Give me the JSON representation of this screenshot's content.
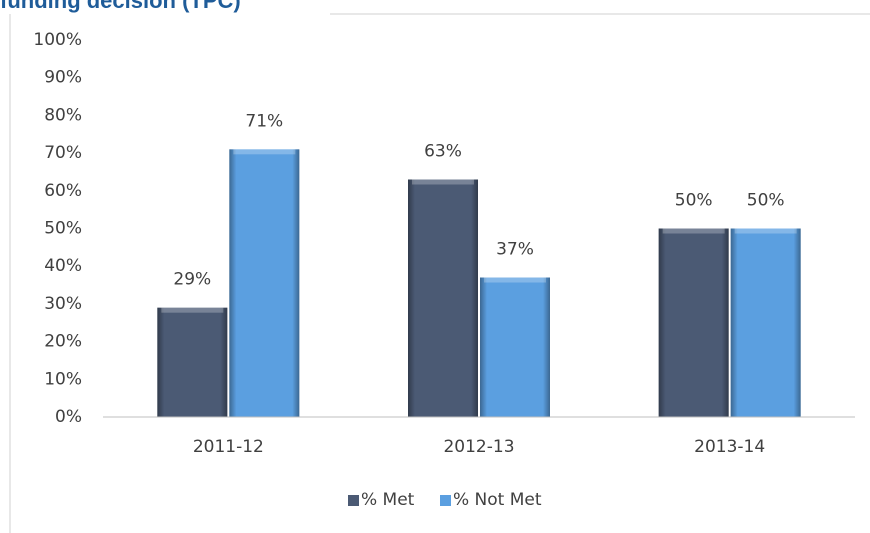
{
  "chart_data": {
    "type": "bar",
    "title": "funding decision (TPC)",
    "categories": [
      "2011-12",
      "2012-13",
      "2013-14"
    ],
    "series": [
      {
        "name": "% Met",
        "color": "#4b5a74",
        "values": [
          29,
          63,
          50
        ],
        "value_labels": [
          "29%",
          "63%",
          "50%"
        ]
      },
      {
        "name": "% Not Met",
        "color": "#5b9fe0",
        "values": [
          71,
          37,
          50
        ],
        "value_labels": [
          "71%",
          "37%",
          "50%"
        ]
      }
    ],
    "ylim": [
      0,
      100
    ],
    "yticks": [
      {
        "value": 0,
        "label": "0%"
      },
      {
        "value": 10,
        "label": "10%"
      },
      {
        "value": 20,
        "label": "20%"
      },
      {
        "value": 30,
        "label": "30%"
      },
      {
        "value": 40,
        "label": "40%"
      },
      {
        "value": 50,
        "label": "50%"
      },
      {
        "value": 60,
        "label": "60%"
      },
      {
        "value": 70,
        "label": "70%"
      },
      {
        "value": 80,
        "label": "80%"
      },
      {
        "value": 90,
        "label": "90%"
      },
      {
        "value": 100,
        "label": "100%"
      }
    ],
    "grid": false,
    "legend": "bottom"
  }
}
